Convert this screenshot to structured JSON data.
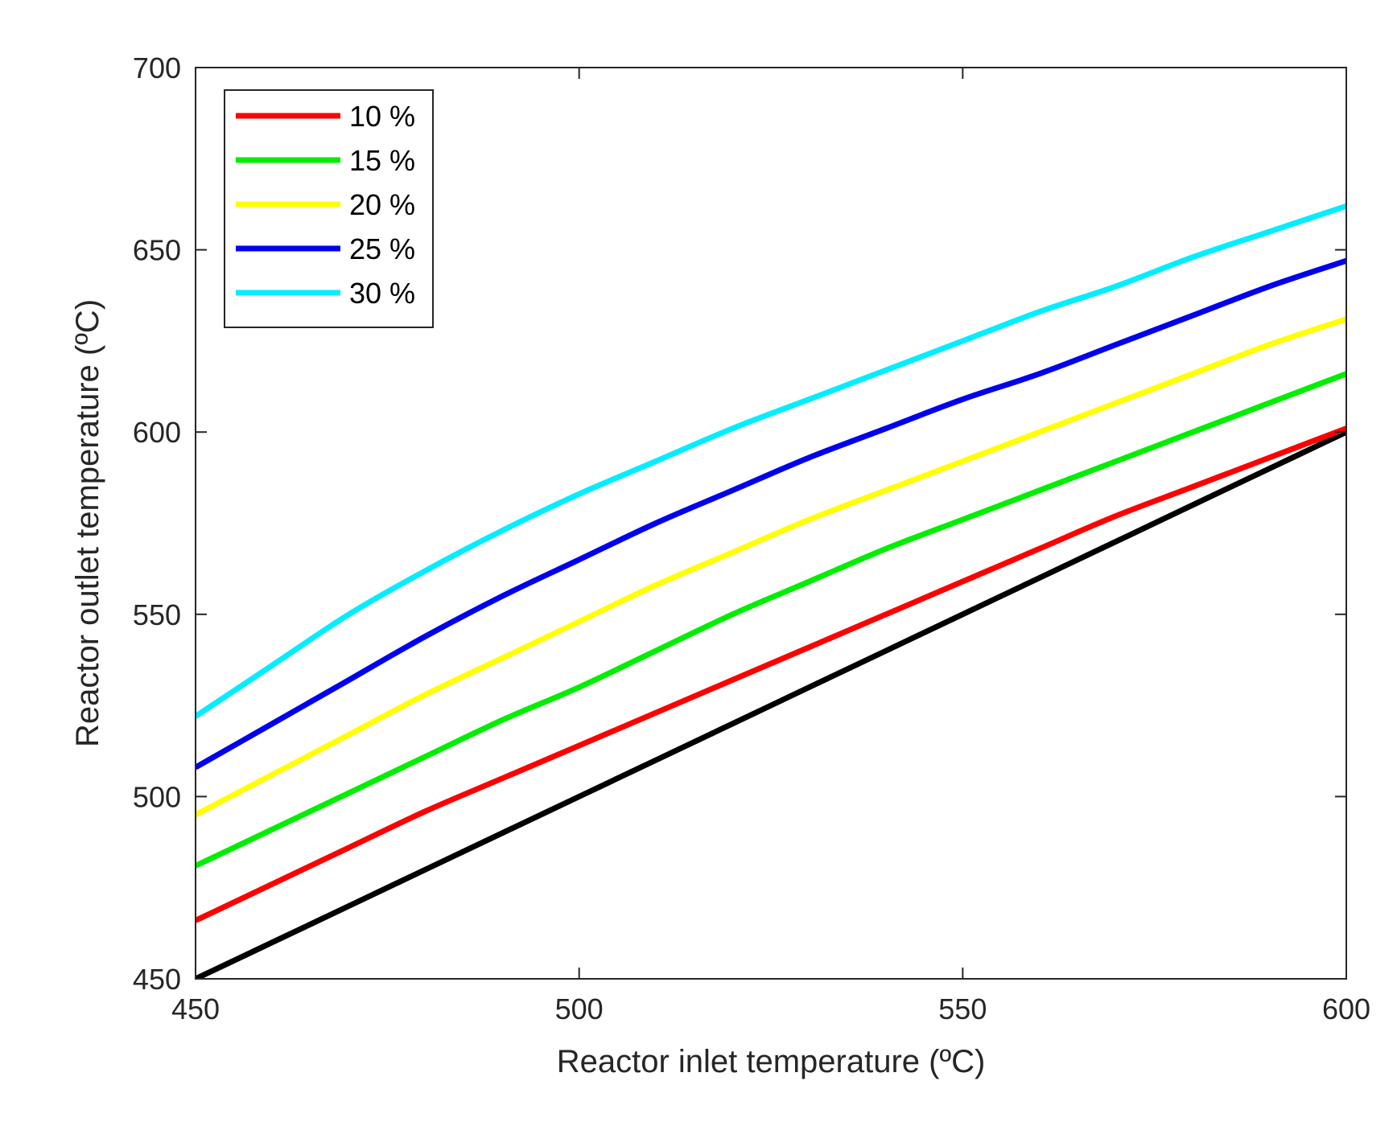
{
  "chart_data": {
    "type": "line",
    "title": "",
    "xlabel": "Reactor inlet temperature (ºC)",
    "ylabel": "Reactor outlet temperature (ºC)",
    "xlim": [
      450,
      600
    ],
    "ylim": [
      450,
      700
    ],
    "xticks": [
      450,
      500,
      550,
      600
    ],
    "yticks": [
      450,
      500,
      550,
      600,
      650,
      700
    ],
    "grid": false,
    "legend_position": "top-left",
    "x": [
      450,
      460,
      470,
      480,
      490,
      500,
      510,
      520,
      530,
      540,
      550,
      560,
      570,
      580,
      590,
      600
    ],
    "series": [
      {
        "name": "10 %",
        "color": "#ff0000",
        "in_legend": true,
        "values": [
          466,
          476,
          486,
          496,
          505,
          514,
          523,
          532,
          541,
          550,
          559,
          568,
          577,
          585,
          593,
          601
        ]
      },
      {
        "name": "15 %",
        "color": "#00ee00",
        "in_legend": true,
        "values": [
          481,
          491,
          501,
          511,
          521,
          530,
          540,
          550,
          559,
          568,
          576,
          584,
          592,
          600,
          608,
          616
        ]
      },
      {
        "name": "20 %",
        "color": "#ffff00",
        "in_legend": true,
        "values": [
          495,
          506,
          517,
          528,
          538,
          548,
          558,
          567,
          576,
          584,
          592,
          600,
          608,
          616,
          624,
          631
        ]
      },
      {
        "name": "25 %",
        "color": "#0000ee",
        "in_legend": true,
        "values": [
          508,
          520,
          532,
          544,
          555,
          565,
          575,
          584,
          593,
          601,
          609,
          616,
          624,
          632,
          640,
          647
        ]
      },
      {
        "name": "30 %",
        "color": "#00eeff",
        "in_legend": true,
        "values": [
          522,
          536,
          550,
          562,
          573,
          583,
          592,
          601,
          609,
          617,
          625,
          633,
          640,
          648,
          655,
          662
        ]
      },
      {
        "name": "",
        "color": "#000000",
        "in_legend": false,
        "values": [
          450,
          460,
          470,
          480,
          490,
          500,
          510,
          520,
          530,
          540,
          550,
          560,
          570,
          580,
          590,
          600
        ]
      }
    ]
  }
}
